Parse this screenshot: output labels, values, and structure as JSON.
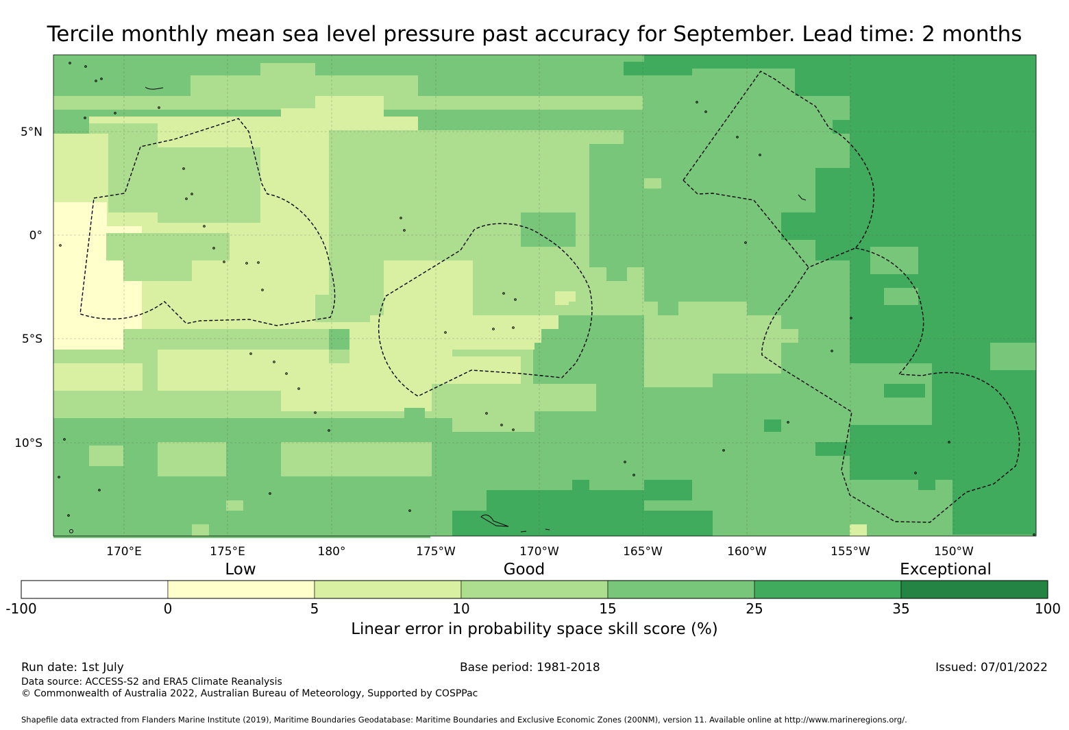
{
  "title": "Tercile monthly mean sea level pressure past accuracy for September. Lead time: 2 months",
  "map": {
    "lon_labels": [
      "170°E",
      "175°E",
      "180°",
      "175°W",
      "170°W",
      "165°W",
      "160°W",
      "155°W",
      "150°W"
    ],
    "lat_labels": [
      "5°N",
      "0°",
      "5°S",
      "10°S"
    ],
    "extent": {
      "lon_min": 166.6,
      "lon_max": 214.0,
      "lat_min": -14.6,
      "lat_max": 8.6
    },
    "colors": {
      "c1": "#ffffcc",
      "c2": "#d9f0a3",
      "c3": "#addd8e",
      "c4": "#78c679",
      "c5": "#41ab5d",
      "c6": "#238443"
    },
    "background_level": "c4"
  },
  "colorbar": {
    "categories": [
      "Low",
      "Good",
      "Exceptional"
    ],
    "ticks": [
      "-100",
      "0",
      "5",
      "10",
      "15",
      "25",
      "35",
      "100"
    ],
    "colors": [
      "#ffffff",
      "#ffffcc",
      "#d9f0a3",
      "#addd8e",
      "#78c679",
      "#41ab5d",
      "#238443"
    ],
    "label": "Linear error in probability space skill score (%)"
  },
  "footer": {
    "run_date": "Run date: 1st July",
    "base_period": "Base period: 1981-2018",
    "issued": "Issued: 07/01/2022",
    "data_source": "Data source: ACCESS-S2 and ERA5 Climate Reanalysis",
    "copyright": "© Commonwealth of Australia 2022, Australian Bureau of Meteorology, Supported by COSPPac",
    "shapefile": "Shapefile data extracted from Flanders Marine Institute (2019), Maritime Boundaries Geodatabase: Maritime Boundaries and Exclusive Economic Zones (200NM), version 11. Available online at http://www.marineregions.org/."
  }
}
